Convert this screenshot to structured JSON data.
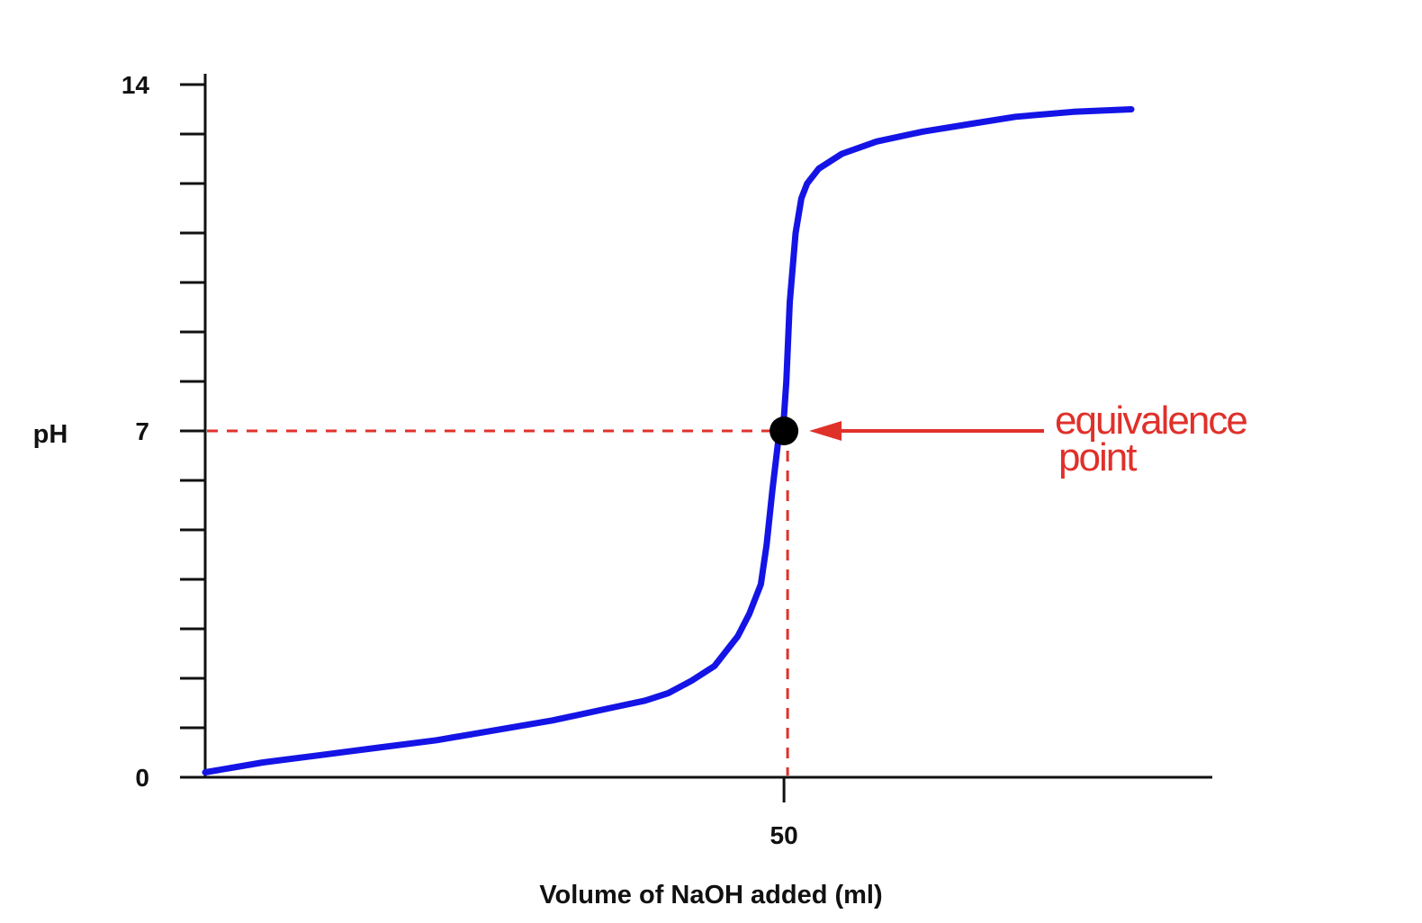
{
  "chart_data": {
    "type": "line",
    "xlabel": "Volume of NaOH added (ml)",
    "ylabel": "pH",
    "xlim": [
      0,
      87
    ],
    "ylim": [
      0,
      14
    ],
    "x_tick_labels": [
      {
        "value": 50,
        "label": "50"
      }
    ],
    "y_tick_labels": [
      {
        "value": 0,
        "label": "0"
      },
      {
        "value": 7,
        "label": "7"
      },
      {
        "value": 14,
        "label": "14"
      }
    ],
    "y_minor_tick_count": 14,
    "grid": false,
    "series": [
      {
        "color": "#1414e6",
        "x": [
          0,
          5,
          10,
          15,
          20,
          25,
          30,
          35,
          38,
          40,
          42,
          44,
          46,
          47,
          48,
          48.5,
          49,
          49.5,
          49.8,
          50,
          50.2,
          50.5,
          51,
          51.5,
          52,
          53,
          55,
          58,
          62,
          66,
          70,
          75,
          80
        ],
        "y": [
          0.1,
          0.3,
          0.45,
          0.6,
          0.75,
          0.95,
          1.15,
          1.4,
          1.55,
          1.7,
          1.95,
          2.25,
          2.85,
          3.3,
          3.9,
          4.7,
          5.8,
          6.8,
          7.0,
          7.3,
          8.0,
          9.6,
          11.0,
          11.7,
          12.0,
          12.3,
          12.6,
          12.85,
          13.05,
          13.2,
          13.35,
          13.45,
          13.5
        ]
      }
    ],
    "point": {
      "x": 50,
      "y": 7,
      "color": "#000000"
    },
    "annotation": {
      "lines": [
        "equivalence",
        "point"
      ],
      "color": "#e0302a",
      "points_to": {
        "x": 50,
        "y": 7
      }
    },
    "reference_lines": {
      "color": "#e0302a",
      "style": "dashed",
      "x": 50,
      "y": 7
    }
  }
}
